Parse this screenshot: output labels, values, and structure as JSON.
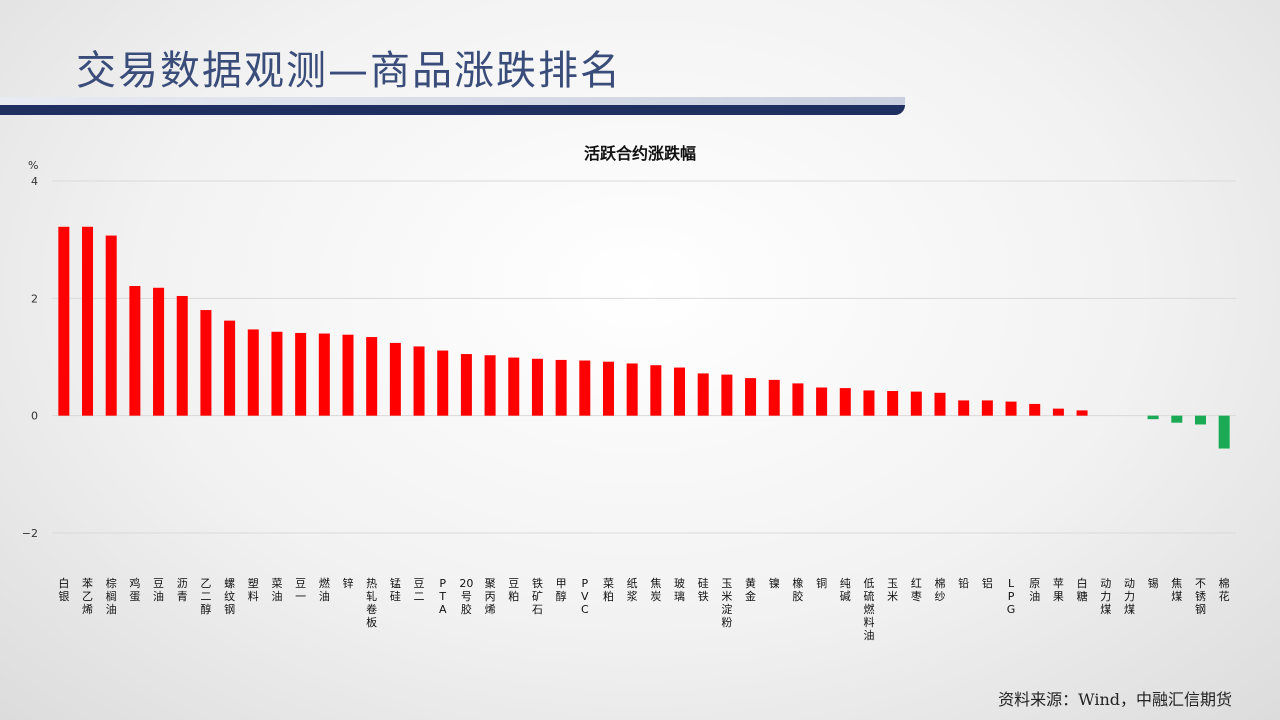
{
  "header": {
    "title": "交易数据观测—商品涨跌排名"
  },
  "colors": {
    "up": "#ff0000",
    "down": "#1aaa55",
    "grid": "#d9d9d9",
    "title": "#3a4d7a"
  },
  "source": "资料来源：Wind，中融汇信期货",
  "chart_data": {
    "type": "bar",
    "title": "活跃合约涨跌幅",
    "ylabel": "%",
    "xlabel": "",
    "ylim": [
      -2,
      4
    ],
    "yticks": [
      -2,
      0,
      2,
      4
    ],
    "ytick_labels": [
      "−2",
      "0",
      "2",
      "4"
    ],
    "grid": true,
    "categories": [
      "白银",
      "苯乙烯",
      "棕榈油",
      "鸡蛋",
      "豆油",
      "沥青",
      "乙二醇",
      "螺纹钢",
      "塑料",
      "菜油",
      "豆一",
      "燃油",
      "锌",
      "热轧卷板",
      "锰硅",
      "豆二",
      "PTA",
      "20号胶",
      "聚丙烯",
      "豆粕",
      "铁矿石",
      "甲醇",
      "PVC",
      "菜粕",
      "纸浆",
      "焦炭",
      "玻璃",
      "硅铁",
      "玉米淀粉",
      "黄金",
      "镍",
      "橡胶",
      "铜",
      "纯碱",
      "低硫燃料油",
      "玉米",
      "红枣",
      "棉纱",
      "铅",
      "铝",
      "LPG",
      "原油",
      "苹果",
      "白糖",
      "动力煤",
      "动力煤",
      "锡",
      "焦煤",
      "不锈钢",
      "棉花"
    ],
    "values": [
      3.22,
      3.22,
      3.07,
      2.21,
      2.18,
      2.04,
      1.8,
      1.62,
      1.47,
      1.43,
      1.41,
      1.4,
      1.38,
      1.34,
      1.24,
      1.18,
      1.11,
      1.05,
      1.03,
      0.99,
      0.97,
      0.95,
      0.94,
      0.92,
      0.89,
      0.86,
      0.82,
      0.72,
      0.7,
      0.64,
      0.61,
      0.55,
      0.48,
      0.47,
      0.43,
      0.42,
      0.41,
      0.39,
      0.26,
      0.26,
      0.24,
      0.2,
      0.12,
      0.09,
      0.0,
      0.0,
      -0.06,
      -0.12,
      -0.15,
      -0.56
    ]
  }
}
